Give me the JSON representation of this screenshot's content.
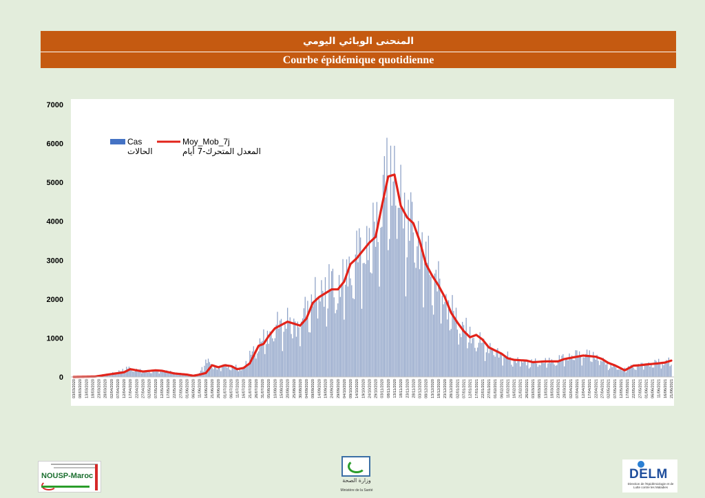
{
  "header": {
    "title_ar": "المنحنى الوبائي اليومي",
    "title_fr": "Courbe épidémique quotidienne"
  },
  "colors": {
    "header_bg": "#c55a11",
    "bar": "#8ea2c7",
    "legend_bar": "#4472c4",
    "line": "#e2231a",
    "page_bg": "#e3eddc"
  },
  "chart_data": {
    "type": "bar",
    "title": "",
    "xlabel": "",
    "ylabel": "",
    "ylim": [
      0,
      7000
    ],
    "yticks": [
      0,
      1000,
      2000,
      3000,
      4000,
      5000,
      6000,
      7000
    ],
    "x_start": "03/03/2020",
    "x_end": "21/06/2021",
    "x_tick_step_days": 5,
    "legend": {
      "position": "top-left",
      "bar_label": "Cas",
      "bar_label_ar": "الحالات",
      "line_label": "Moy_Mob_7j",
      "line_label_ar": "المعدل المتحرك-7 أيام"
    },
    "series": [
      {
        "name": "Cas",
        "kind": "bar",
        "values_note": "",
        "anchors": [
          [
            "03/03/2020",
            0
          ],
          [
            "20/03/2020",
            15
          ],
          [
            "01/04/2020",
            80
          ],
          [
            "15/04/2020",
            230
          ],
          [
            "01/05/2020",
            140
          ],
          [
            "12/05/2020",
            170
          ],
          [
            "01/06/2020",
            60
          ],
          [
            "10/06/2020",
            60
          ],
          [
            "16/06/2020",
            420
          ],
          [
            "25/06/2020",
            250
          ],
          [
            "05/07/2020",
            300
          ],
          [
            "15/07/2020",
            200
          ],
          [
            "24/07/2020",
            700
          ],
          [
            "30/07/2020",
            900
          ],
          [
            "10/08/2020",
            1300
          ],
          [
            "20/08/2020",
            1500
          ],
          [
            "28/08/2020",
            1350
          ],
          [
            "10/09/2020",
            2100
          ],
          [
            "20/09/2020",
            2400
          ],
          [
            "01/10/2020",
            2400
          ],
          [
            "15/10/2020",
            3200
          ],
          [
            "28/10/2020",
            3800
          ],
          [
            "06/11/2020",
            5000
          ],
          [
            "12/11/2020",
            5600
          ],
          [
            "18/11/2020",
            4500
          ],
          [
            "01/12/2020",
            3800
          ],
          [
            "10/12/2020",
            3000
          ],
          [
            "20/12/2020",
            2300
          ],
          [
            "01/01/2021",
            1500
          ],
          [
            "15/01/2021",
            1000
          ],
          [
            "01/02/2021",
            700
          ],
          [
            "15/02/2021",
            450
          ],
          [
            "01/03/2021",
            380
          ],
          [
            "20/03/2021",
            420
          ],
          [
            "05/04/2021",
            600
          ],
          [
            "20/04/2021",
            580
          ],
          [
            "01/05/2021",
            350
          ],
          [
            "13/05/2021",
            200
          ],
          [
            "25/05/2021",
            300
          ],
          [
            "10/06/2021",
            380
          ],
          [
            "21/06/2021",
            420
          ]
        ]
      },
      {
        "name": "Moy_Mob_7j",
        "kind": "line",
        "anchors": [
          [
            "03/03/2020",
            0
          ],
          [
            "20/03/2020",
            10
          ],
          [
            "01/04/2020",
            70
          ],
          [
            "12/04/2020",
            120
          ],
          [
            "17/04/2020",
            200
          ],
          [
            "27/04/2020",
            140
          ],
          [
            "07/05/2020",
            170
          ],
          [
            "12/05/2020",
            160
          ],
          [
            "22/05/2020",
            90
          ],
          [
            "01/06/2020",
            60
          ],
          [
            "06/06/2020",
            30
          ],
          [
            "11/06/2020",
            60
          ],
          [
            "16/06/2020",
            100
          ],
          [
            "21/06/2020",
            300
          ],
          [
            "26/06/2020",
            250
          ],
          [
            "01/07/2020",
            300
          ],
          [
            "06/07/2020",
            280
          ],
          [
            "11/07/2020",
            200
          ],
          [
            "16/07/2020",
            230
          ],
          [
            "21/07/2020",
            350
          ],
          [
            "28/07/2020",
            800
          ],
          [
            "01/08/2020",
            850
          ],
          [
            "05/08/2020",
            1050
          ],
          [
            "10/08/2020",
            1250
          ],
          [
            "20/08/2020",
            1420
          ],
          [
            "25/08/2020",
            1370
          ],
          [
            "30/08/2020",
            1320
          ],
          [
            "04/09/2020",
            1500
          ],
          [
            "09/09/2020",
            1900
          ],
          [
            "14/09/2020",
            2050
          ],
          [
            "19/09/2020",
            2150
          ],
          [
            "24/09/2020",
            2250
          ],
          [
            "29/09/2020",
            2250
          ],
          [
            "04/10/2020",
            2450
          ],
          [
            "09/10/2020",
            2900
          ],
          [
            "14/10/2020",
            3050
          ],
          [
            "19/10/2020",
            3250
          ],
          [
            "24/10/2020",
            3450
          ],
          [
            "29/10/2020",
            3600
          ],
          [
            "03/11/2020",
            4400
          ],
          [
            "08/11/2020",
            5150
          ],
          [
            "13/11/2020",
            5200
          ],
          [
            "18/11/2020",
            4400
          ],
          [
            "23/11/2020",
            4100
          ],
          [
            "28/11/2020",
            3950
          ],
          [
            "03/12/2020",
            3500
          ],
          [
            "08/12/2020",
            2900
          ],
          [
            "13/12/2020",
            2600
          ],
          [
            "18/12/2020",
            2350
          ],
          [
            "23/12/2020",
            2050
          ],
          [
            "28/12/2020",
            1650
          ],
          [
            "02/01/2021",
            1400
          ],
          [
            "07/01/2021",
            1180
          ],
          [
            "12/01/2021",
            1020
          ],
          [
            "17/01/2021",
            1080
          ],
          [
            "22/01/2021",
            960
          ],
          [
            "27/01/2021",
            760
          ],
          [
            "01/02/2021",
            680
          ],
          [
            "06/02/2021",
            600
          ],
          [
            "11/02/2021",
            480
          ],
          [
            "16/02/2021",
            440
          ],
          [
            "26/02/2021",
            420
          ],
          [
            "03/03/2021",
            380
          ],
          [
            "13/03/2021",
            400
          ],
          [
            "23/03/2021",
            400
          ],
          [
            "28/03/2021",
            460
          ],
          [
            "07/04/2021",
            520
          ],
          [
            "12/04/2021",
            550
          ],
          [
            "22/04/2021",
            520
          ],
          [
            "27/04/2021",
            460
          ],
          [
            "02/05/2021",
            360
          ],
          [
            "07/05/2021",
            300
          ],
          [
            "12/05/2021",
            220
          ],
          [
            "15/05/2021",
            170
          ],
          [
            "22/05/2021",
            290
          ],
          [
            "27/05/2021",
            300
          ],
          [
            "01/06/2021",
            320
          ],
          [
            "11/06/2021",
            350
          ],
          [
            "16/06/2021",
            370
          ],
          [
            "21/06/2021",
            420
          ]
        ]
      }
    ]
  }
}
